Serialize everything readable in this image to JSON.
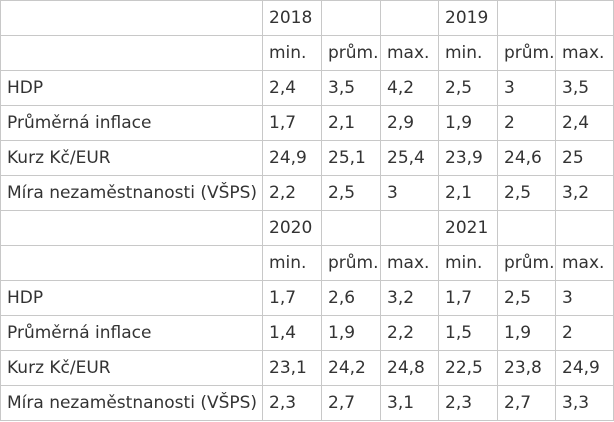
{
  "blocks": [
    {
      "years": [
        "2018",
        "2019"
      ],
      "sub_headers": [
        "min.",
        "prům.",
        "max.",
        "min.",
        "prům.",
        "max."
      ],
      "rows": [
        {
          "label": "HDP",
          "values": [
            "2,4",
            "3,5",
            "4,2",
            "2,5",
            "3",
            "3,5"
          ]
        },
        {
          "label": "Průměrná inflace",
          "values": [
            "1,7",
            "2,1",
            "2,9",
            "1,9",
            "2",
            "2,4"
          ]
        },
        {
          "label": "Kurz Kč/EUR",
          "values": [
            "24,9",
            "25,1",
            "25,4",
            "23,9",
            "24,6",
            "25"
          ]
        },
        {
          "label": "Míra nezaměstnanosti (VŠPS)",
          "values": [
            "2,2",
            "2,5",
            "3",
            "2,1",
            "2,5",
            "3,2"
          ]
        }
      ]
    },
    {
      "years": [
        "2020",
        "2021"
      ],
      "sub_headers": [
        "min.",
        "prům.",
        "max.",
        "min.",
        "prům.",
        "max."
      ],
      "rows": [
        {
          "label": "HDP",
          "values": [
            "1,7",
            "2,6",
            "3,2",
            "1,7",
            "2,5",
            "3"
          ]
        },
        {
          "label": "Průměrná inflace",
          "values": [
            "1,4",
            "1,9",
            "2,2",
            "1,5",
            "1,9",
            "2"
          ]
        },
        {
          "label": "Kurz Kč/EUR",
          "values": [
            "23,1",
            "24,2",
            "24,8",
            "22,5",
            "23,8",
            "24,9"
          ]
        },
        {
          "label": "Míra nezaměstnanosti (VŠPS)",
          "values": [
            "2,3",
            "2,7",
            "3,1",
            "2,3",
            "2,7",
            "3,3"
          ]
        }
      ]
    }
  ]
}
